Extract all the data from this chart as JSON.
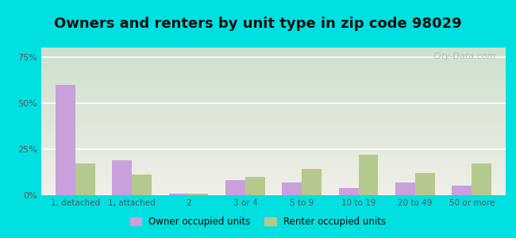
{
  "title": "Owners and renters by unit type in zip code 98029",
  "categories": [
    "1, detached",
    "1, attached",
    "2",
    "3 or 4",
    "5 to 9",
    "10 to 19",
    "20 to 49",
    "50 or more"
  ],
  "owner_values": [
    60,
    19,
    1,
    8,
    7,
    4,
    7,
    5
  ],
  "renter_values": [
    17,
    11,
    1,
    10,
    14,
    22,
    12,
    17
  ],
  "owner_color": "#c9a0dc",
  "renter_color": "#b5c98e",
  "background_outer": "#00e0e0",
  "background_inner_top": "#cde0cd",
  "background_inner_bottom": "#f0f0e8",
  "ylabel_ticks": [
    "0%",
    "25%",
    "50%",
    "75%"
  ],
  "ytick_values": [
    0,
    25,
    50,
    75
  ],
  "ylim": [
    0,
    80
  ],
  "title_fontsize": 13,
  "legend_owner": "Owner occupied units",
  "legend_renter": "Renter occupied units",
  "bar_width": 0.35,
  "watermark": "City-Data.com"
}
